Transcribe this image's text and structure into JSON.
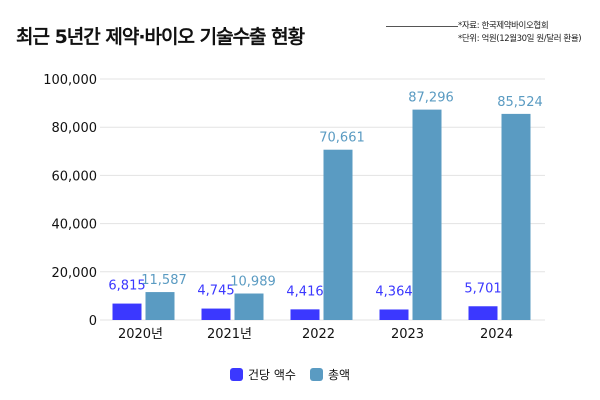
{
  "title": "최근 5년간 제약·바이오 기술수출 현황",
  "source_notes": [
    "*자료: 한국제약바이오협회",
    "*단위: 억원(12월30일 원/달러 환율)"
  ],
  "colors": {
    "per_deal": "#3b38ff",
    "total": "#5a9bc2"
  },
  "chart_data": {
    "type": "bar",
    "title": "최근 5년간 제약·바이오 기술수출 현황",
    "categories": [
      "2020년",
      "2021년",
      "2022",
      "2023",
      "2024"
    ],
    "series": [
      {
        "name": "건당 액수",
        "values": [
          6815,
          4745,
          4416,
          4364,
          5701
        ],
        "labels": [
          "6,815",
          "4,745",
          "4,416",
          "4,364",
          "5,701"
        ]
      },
      {
        "name": "총액",
        "values": [
          11587,
          10989,
          70661,
          87296,
          85524
        ],
        "labels": [
          "11,587",
          "10,989",
          "70,661",
          "87,296",
          "85,524"
        ]
      }
    ],
    "yticks": [
      "0",
      "20,000",
      "40,000",
      "60,000",
      "80,000",
      "100,000"
    ],
    "ytick_values": [
      0,
      20000,
      40000,
      60000,
      80000,
      100000
    ],
    "ylim": [
      0,
      100000
    ],
    "grid": true,
    "legend": "bottom"
  }
}
